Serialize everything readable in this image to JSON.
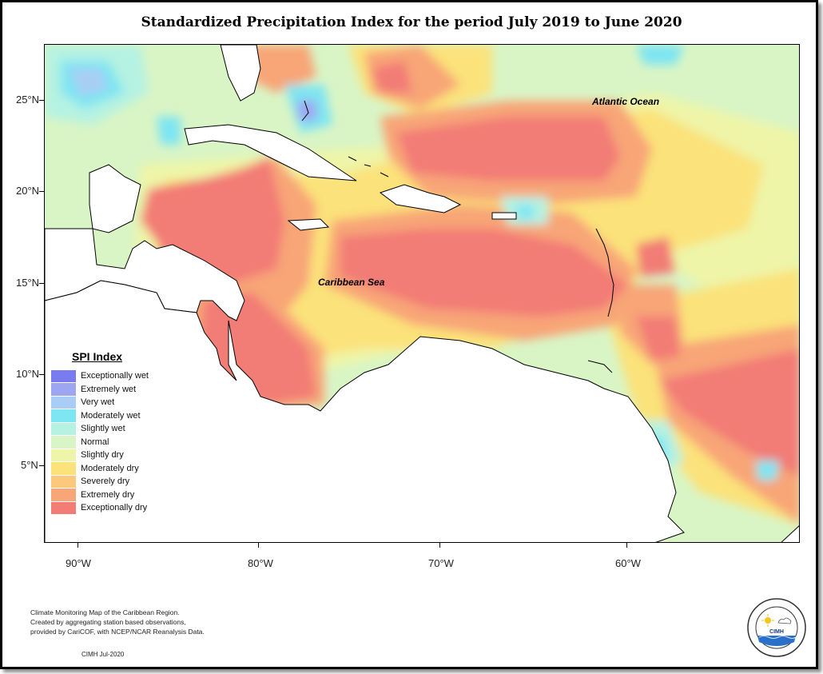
{
  "title": "Standardized Precipitation Index for the period July 2019 to June 2020",
  "map": {
    "labels": {
      "atlantic": "Atlantic Ocean",
      "caribbean": "Caribbean Sea"
    },
    "lat_ticks": [
      "25°N",
      "20°N",
      "15°N",
      "10°N",
      "5°N"
    ],
    "lon_ticks": [
      "90°W",
      "80°W",
      "70°W",
      "60°W"
    ]
  },
  "legend": {
    "title": "SPI Index",
    "items": [
      {
        "label": "Exceptionally wet",
        "color": "#7b7bf0"
      },
      {
        "label": "Extremely wet",
        "color": "#9ea6f2"
      },
      {
        "label": "Very wet",
        "color": "#a9cdf5"
      },
      {
        "label": "Moderately wet",
        "color": "#7ee5f2"
      },
      {
        "label": "Slightly wet",
        "color": "#b5f2e2"
      },
      {
        "label": "Normal",
        "color": "#d9f5c5"
      },
      {
        "label": "Slightly dry",
        "color": "#eef5a8"
      },
      {
        "label": "Moderately dry",
        "color": "#fbe27a"
      },
      {
        "label": "Severely dry",
        "color": "#fbc87d"
      },
      {
        "label": "Extremely dry",
        "color": "#f8a577"
      },
      {
        "label": "Exceptionally dry",
        "color": "#f27c76"
      }
    ]
  },
  "notes": {
    "line1": "Climate Monitoring Map of the Caribbean Region.",
    "line2": "Created by aggregating station based observations,",
    "line3": "provided by CariCOF, with NCEP/NCAR Reanalysis Data.",
    "credit": "CIMH Jul-2020"
  },
  "logo": {
    "name": "CIMH",
    "ring_text": "Caribbean Institute for Meteorology and Hydrology"
  }
}
